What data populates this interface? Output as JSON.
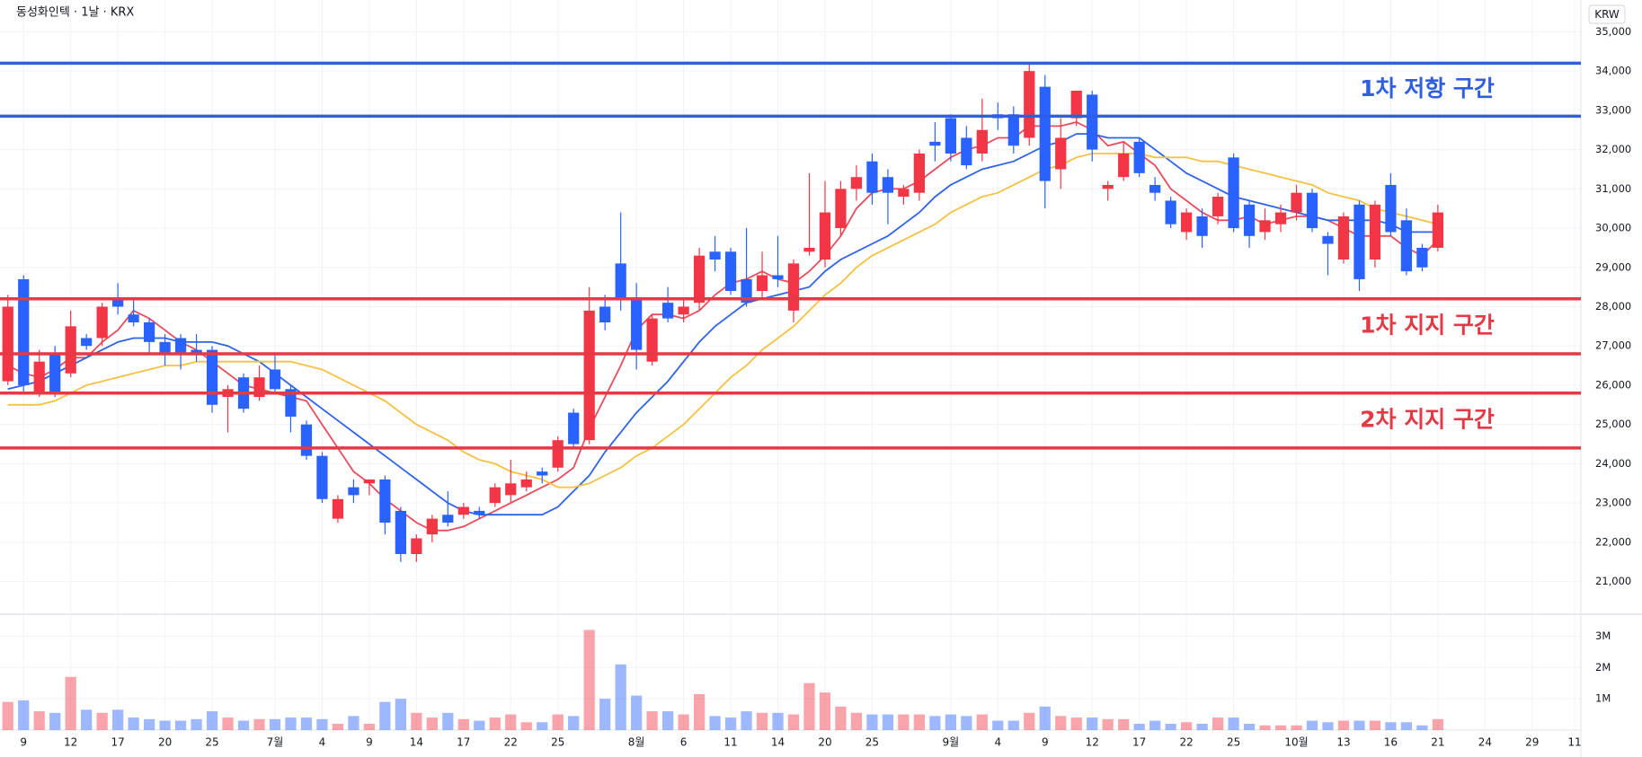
{
  "chart_data": {
    "type": "candlestick",
    "title": "동성화인텍 · 1날 · KRX",
    "currency": "KRW",
    "up_color": "#f23645",
    "down_color": "#2962ff",
    "grid": true,
    "xlim": [
      -0.5,
      100.1
    ],
    "xticks": [
      {
        "value": 1,
        "label": "9"
      },
      {
        "value": 4,
        "label": "12"
      },
      {
        "value": 7,
        "label": "17"
      },
      {
        "value": 10,
        "label": "20"
      },
      {
        "value": 13,
        "label": "25"
      },
      {
        "value": 17,
        "label": "7월"
      },
      {
        "value": 20,
        "label": "4"
      },
      {
        "value": 23,
        "label": "9"
      },
      {
        "value": 26,
        "label": "14"
      },
      {
        "value": 29,
        "label": "17"
      },
      {
        "value": 32,
        "label": "22"
      },
      {
        "value": 35,
        "label": "25"
      },
      {
        "value": 40,
        "label": "8월"
      },
      {
        "value": 43,
        "label": "6"
      },
      {
        "value": 46,
        "label": "11"
      },
      {
        "value": 49,
        "label": "14"
      },
      {
        "value": 52,
        "label": "20"
      },
      {
        "value": 55,
        "label": "25"
      },
      {
        "value": 60,
        "label": "9월"
      },
      {
        "value": 63,
        "label": "4"
      },
      {
        "value": 66,
        "label": "9"
      },
      {
        "value": 69,
        "label": "12"
      },
      {
        "value": 72,
        "label": "17"
      },
      {
        "value": 75,
        "label": "22"
      },
      {
        "value": 78,
        "label": "25"
      },
      {
        "value": 82,
        "label": "10월"
      },
      {
        "value": 85,
        "label": "13"
      },
      {
        "value": 88,
        "label": "16"
      },
      {
        "value": 91,
        "label": "21"
      },
      {
        "value": 94,
        "label": "24"
      },
      {
        "value": 97,
        "label": "29"
      },
      {
        "value": 99.7,
        "label": "11"
      }
    ],
    "ylim": [
      20190,
      35810
    ],
    "yticks": [
      {
        "value": 21000,
        "label": "21,000"
      },
      {
        "value": 22000,
        "label": "22,000"
      },
      {
        "value": 23000,
        "label": "23,000"
      },
      {
        "value": 24000,
        "label": "24,000"
      },
      {
        "value": 25000,
        "label": "25,000"
      },
      {
        "value": 26000,
        "label": "26,000"
      },
      {
        "value": 27000,
        "label": "27,000"
      },
      {
        "value": 28000,
        "label": "28,000"
      },
      {
        "value": 29000,
        "label": "29,000"
      },
      {
        "value": 30000,
        "label": "30,000"
      },
      {
        "value": 31000,
        "label": "31,000"
      },
      {
        "value": 32000,
        "label": "32,000"
      },
      {
        "value": 33000,
        "label": "33,000"
      },
      {
        "value": 34000,
        "label": "34,000"
      },
      {
        "value": 35000,
        "label": "35,000"
      }
    ],
    "volume_ylim": [
      0,
      3530000
    ],
    "volume_yticks": [
      {
        "value": 1000000,
        "label": "1M"
      },
      {
        "value": 2000000,
        "label": "2M"
      },
      {
        "value": 3000000,
        "label": "3M"
      }
    ],
    "open": [
      26100,
      28700,
      25800,
      26800,
      26300,
      27200,
      27200,
      28200,
      27800,
      27600,
      27100,
      27200,
      26900,
      26900,
      25700,
      26200,
      25700,
      26400,
      25900,
      25000,
      24200,
      22600,
      23400,
      23500,
      23600,
      22800,
      21700,
      22200,
      22700,
      22700,
      22800,
      23000,
      23200,
      23400,
      23800,
      23900,
      25300,
      24600,
      28000,
      29100,
      28200,
      26600,
      28100,
      27800,
      28100,
      29400,
      29400,
      28700,
      28400,
      28800,
      27900,
      29400,
      29200,
      30000,
      31000,
      31700,
      31300,
      30800,
      30900,
      32200,
      32800,
      32300,
      31900,
      32900,
      32900,
      32300,
      33600,
      31500,
      32800,
      33400,
      31000,
      31300,
      32200,
      31100,
      30700,
      29900,
      30300,
      30300,
      31800,
      30600,
      29900,
      30100,
      30400,
      30900,
      29800,
      29200,
      30600,
      29200,
      31100,
      30200,
      29500,
      29500
    ],
    "high": [
      28300,
      28800,
      26900,
      27000,
      27900,
      27300,
      28100,
      28600,
      28200,
      27700,
      27300,
      27300,
      27300,
      27000,
      26000,
      26300,
      26500,
      26800,
      26000,
      25100,
      24300,
      23200,
      23600,
      23600,
      23700,
      22900,
      22200,
      22700,
      23300,
      23000,
      22900,
      23500,
      24100,
      23800,
      23900,
      24700,
      25400,
      28500,
      28300,
      30400,
      28600,
      27800,
      28500,
      28200,
      29500,
      29800,
      29500,
      30000,
      29400,
      29800,
      29200,
      31400,
      31200,
      31200,
      31600,
      31900,
      31500,
      31100,
      32000,
      32700,
      32900,
      32600,
      33300,
      33200,
      33100,
      34200,
      33900,
      32800,
      33500,
      33500,
      31200,
      32200,
      32300,
      31300,
      30800,
      30500,
      30500,
      30900,
      31900,
      30700,
      30500,
      30600,
      31100,
      31000,
      29900,
      30400,
      30700,
      30700,
      31400,
      30500,
      29600,
      30600
    ],
    "low": [
      26000,
      25800,
      25700,
      25700,
      26200,
      26900,
      27000,
      27800,
      27500,
      26800,
      26500,
      26400,
      26600,
      25300,
      24800,
      25300,
      25600,
      25800,
      24800,
      24100,
      23000,
      22500,
      23000,
      23200,
      22200,
      21500,
      21500,
      22000,
      22400,
      22600,
      22600,
      22900,
      23000,
      23300,
      23500,
      23800,
      24400,
      24500,
      27400,
      27900,
      26400,
      26500,
      27600,
      27600,
      27900,
      28900,
      28300,
      28000,
      28200,
      28500,
      27600,
      29300,
      29000,
      29800,
      30700,
      30600,
      30100,
      30600,
      30700,
      31700,
      31700,
      31500,
      31700,
      32500,
      31900,
      32100,
      30500,
      31000,
      32600,
      31700,
      30700,
      31200,
      31300,
      30700,
      30000,
      29700,
      29500,
      30100,
      29900,
      29500,
      29700,
      29900,
      30200,
      29900,
      28800,
      29100,
      28400,
      29000,
      29800,
      28800,
      28900,
      29400
    ],
    "close": [
      28000,
      26000,
      26600,
      25800,
      27500,
      27000,
      28000,
      28000,
      27600,
      27100,
      26800,
      26800,
      26800,
      25500,
      25900,
      25400,
      26200,
      25900,
      25200,
      24200,
      23100,
      23100,
      23200,
      23600,
      22500,
      21700,
      22100,
      22600,
      22500,
      22900,
      22700,
      23400,
      23500,
      23600,
      23700,
      24600,
      24500,
      27900,
      27600,
      28200,
      26900,
      27700,
      27700,
      28000,
      29300,
      29200,
      28400,
      28100,
      28800,
      28700,
      29100,
      29500,
      30400,
      31000,
      31300,
      30900,
      30900,
      31000,
      31900,
      32100,
      31900,
      31600,
      32500,
      32800,
      32100,
      34000,
      31200,
      32300,
      33500,
      32000,
      31100,
      31900,
      31400,
      30900,
      30100,
      30400,
      29800,
      30800,
      30000,
      29800,
      30200,
      30400,
      30900,
      30000,
      29600,
      30300,
      28700,
      30600,
      29900,
      28900,
      29000,
      30400
    ],
    "volume": [
      900000,
      950000,
      600000,
      550000,
      1700000,
      650000,
      550000,
      650000,
      400000,
      350000,
      300000,
      300000,
      350000,
      600000,
      400000,
      300000,
      350000,
      350000,
      400000,
      400000,
      350000,
      200000,
      450000,
      200000,
      900000,
      1000000,
      550000,
      400000,
      550000,
      350000,
      300000,
      400000,
      500000,
      250000,
      250000,
      500000,
      450000,
      3200000,
      1000000,
      2100000,
      1100000,
      600000,
      600000,
      500000,
      1150000,
      450000,
      400000,
      600000,
      550000,
      550000,
      500000,
      1500000,
      1200000,
      750000,
      550000,
      500000,
      500000,
      500000,
      500000,
      450000,
      500000,
      450000,
      500000,
      300000,
      300000,
      550000,
      750000,
      450000,
      400000,
      400000,
      350000,
      350000,
      200000,
      300000,
      200000,
      250000,
      200000,
      400000,
      400000,
      200000,
      150000,
      150000,
      150000,
      300000,
      250000,
      300000,
      300000,
      300000,
      250000,
      250000,
      150000,
      350000
    ],
    "ma": [
      {
        "color": "#e84b5a",
        "values": [
          26500,
          26300,
          26200,
          26400,
          26700,
          26700,
          27100,
          27400,
          27900,
          27700,
          27400,
          27100,
          26900,
          26600,
          26300,
          26000,
          25900,
          25800,
          25700,
          25600,
          25000,
          24400,
          23800,
          23500,
          23100,
          22800,
          22500,
          22300,
          22300,
          22400,
          22600,
          22800,
          23000,
          23200,
          23400,
          23600,
          23900,
          24900,
          25700,
          26500,
          27400,
          27800,
          27800,
          27700,
          27900,
          28300,
          28600,
          28700,
          28900,
          28700,
          28600,
          28900,
          29300,
          29800,
          30500,
          30900,
          31000,
          31000,
          31200,
          31500,
          31800,
          32000,
          32100,
          32300,
          32300,
          32600,
          32600,
          32600,
          32700,
          32500,
          32100,
          32200,
          31900,
          31600,
          31000,
          30700,
          30400,
          30200,
          30200,
          30300,
          30100,
          30200,
          30300,
          30300,
          30200,
          30000,
          29800,
          29800,
          29800,
          29500,
          29300,
          29700
        ]
      },
      {
        "color": "#2f63e6",
        "values": [
          25900,
          26000,
          26100,
          26300,
          26500,
          26700,
          26900,
          27100,
          27200,
          27200,
          27200,
          27100,
          27100,
          27100,
          27000,
          26800,
          26600,
          26300,
          26000,
          25700,
          25400,
          25100,
          24800,
          24500,
          24200,
          23900,
          23600,
          23300,
          23000,
          22800,
          22700,
          22700,
          22700,
          22700,
          22700,
          22900,
          23300,
          23700,
          24300,
          24800,
          25300,
          25700,
          26100,
          26600,
          27100,
          27500,
          27800,
          28100,
          28200,
          28300,
          28400,
          28500,
          28900,
          29200,
          29400,
          29600,
          29800,
          30100,
          30400,
          30800,
          31100,
          31300,
          31500,
          31600,
          31700,
          31900,
          32100,
          32200,
          32400,
          32400,
          32300,
          32300,
          32300,
          32000,
          31700,
          31400,
          31200,
          31000,
          30800,
          30700,
          30600,
          30500,
          30400,
          30300,
          30200,
          30200,
          30200,
          30200,
          30100,
          29900,
          29900,
          29900
        ]
      },
      {
        "color": "#f5c142",
        "values": [
          25500,
          25500,
          25500,
          25600,
          25800,
          26000,
          26100,
          26200,
          26300,
          26400,
          26500,
          26500,
          26600,
          26600,
          26600,
          26600,
          26600,
          26600,
          26600,
          26500,
          26400,
          26200,
          26000,
          25800,
          25600,
          25300,
          25000,
          24800,
          24600,
          24300,
          24100,
          24000,
          23800,
          23700,
          23600,
          23400,
          23400,
          23500,
          23700,
          23900,
          24200,
          24400,
          24700,
          25000,
          25400,
          25800,
          26200,
          26500,
          26900,
          27200,
          27500,
          27900,
          28300,
          28600,
          29000,
          29300,
          29500,
          29700,
          29900,
          30100,
          30400,
          30600,
          30800,
          30900,
          31100,
          31300,
          31500,
          31600,
          31800,
          31900,
          31900,
          31900,
          31900,
          31800,
          31800,
          31800,
          31700,
          31700,
          31600,
          31500,
          31400,
          31300,
          31200,
          31100,
          30900,
          30800,
          30700,
          30500,
          30400,
          30300,
          30200,
          30100
        ]
      }
    ],
    "levels": [
      {
        "value": 34200,
        "color": "#2f5fe0"
      },
      {
        "value": 32850,
        "color": "#2f5fe0"
      },
      {
        "value": 28200,
        "color": "#e53945"
      },
      {
        "value": 26800,
        "color": "#e53945"
      },
      {
        "value": 25800,
        "color": "#e53945"
      },
      {
        "value": 24400,
        "color": "#e53945"
      }
    ],
    "annotations": [
      {
        "text": "1차 저항 구간",
        "color": "#2f5fe0"
      },
      {
        "text": "1차 지지 구간",
        "color": "#e53945"
      },
      {
        "text": "2차 지지 구간",
        "color": "#e53945"
      }
    ]
  }
}
